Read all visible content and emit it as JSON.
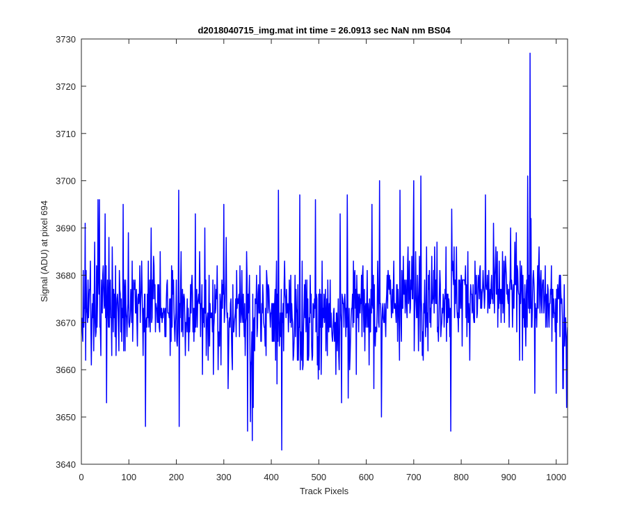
{
  "chart_data": {
    "type": "line",
    "title": "d2018040715_img.mat int time = 26.0913 sec  NaN nm BS04",
    "xlabel": "Track Pixels",
    "ylabel": "Signal (ADU) at pixel 694",
    "xlim": [
      0,
      1024
    ],
    "ylim": [
      3640,
      3730
    ],
    "xticks": [
      0,
      100,
      200,
      300,
      400,
      500,
      600,
      700,
      800,
      900,
      1000
    ],
    "yticks": [
      3640,
      3650,
      3660,
      3670,
      3680,
      3690,
      3700,
      3710,
      3720,
      3730
    ],
    "grid": false,
    "box": true,
    "series": [
      {
        "color": "#0000ff",
        "x_start": 1,
        "x_step": 1,
        "count": 1024,
        "typical_range": [
          3655,
          3692
        ],
        "baseline_trend": [
          [
            0,
            3674
          ],
          [
            500,
            3671
          ],
          [
            600,
            3672
          ],
          [
            700,
            3676
          ],
          [
            950,
            3676
          ],
          [
            1024,
            3672
          ]
        ],
        "notable_points": [
          [
            3,
            3666
          ],
          [
            8,
            3691
          ],
          [
            35,
            3696
          ],
          [
            38,
            3696
          ],
          [
            50,
            3693
          ],
          [
            53,
            3653
          ],
          [
            88,
            3695
          ],
          [
            135,
            3648
          ],
          [
            147,
            3690
          ],
          [
            205,
            3698
          ],
          [
            206,
            3648
          ],
          [
            240,
            3693
          ],
          [
            260,
            3690
          ],
          [
            300,
            3695
          ],
          [
            305,
            3688
          ],
          [
            350,
            3647
          ],
          [
            356,
            3649
          ],
          [
            360,
            3645
          ],
          [
            362,
            3652
          ],
          [
            415,
            3698
          ],
          [
            422,
            3643
          ],
          [
            460,
            3697
          ],
          [
            493,
            3696
          ],
          [
            545,
            3693
          ],
          [
            548,
            3653
          ],
          [
            560,
            3697
          ],
          [
            562,
            3654
          ],
          [
            612,
            3695
          ],
          [
            628,
            3700
          ],
          [
            632,
            3650
          ],
          [
            671,
            3698
          ],
          [
            700,
            3700
          ],
          [
            715,
            3701
          ],
          [
            778,
            3647
          ],
          [
            780,
            3694
          ],
          [
            851,
            3697
          ],
          [
            940,
            3701
          ],
          [
            945,
            3727
          ],
          [
            955,
            3655
          ],
          [
            1000,
            3655
          ],
          [
            1015,
            3656
          ],
          [
            1022,
            3652
          ]
        ]
      }
    ]
  }
}
